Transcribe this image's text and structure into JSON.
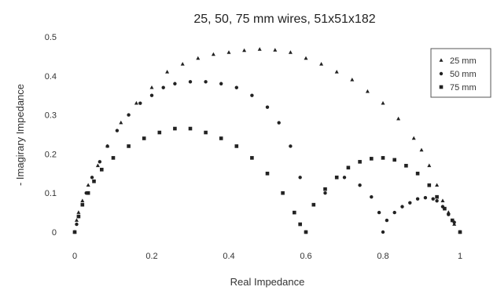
{
  "chart_data": {
    "type": "scatter",
    "title": "25, 50, 75 mm wires, 51x51x182",
    "xlabel": "Real Impedance",
    "ylabel": "- Imagirary Impedance",
    "xlim": [
      0,
      1
    ],
    "ylim": [
      0,
      0.5
    ],
    "x_ticks": [
      "0",
      "0.2",
      "0.4",
      "0.6",
      "0.8",
      "1"
    ],
    "y_ticks": [
      "0",
      "0.1",
      "0.2",
      "0.3",
      "0.4",
      "0.5"
    ],
    "grid": false,
    "legend_position": "top-right",
    "series": [
      {
        "name": "25 mm",
        "marker": "triangle",
        "x": [
          0.0,
          0.005,
          0.01,
          0.02,
          0.035,
          0.06,
          0.085,
          0.12,
          0.16,
          0.2,
          0.24,
          0.28,
          0.32,
          0.36,
          0.4,
          0.44,
          0.48,
          0.52,
          0.56,
          0.6,
          0.64,
          0.68,
          0.72,
          0.76,
          0.8,
          0.84,
          0.88,
          0.9,
          0.92,
          0.94,
          0.955,
          0.97,
          0.985,
          1.0
        ],
        "y": [
          0.0,
          0.03,
          0.05,
          0.08,
          0.12,
          0.17,
          0.22,
          0.28,
          0.33,
          0.37,
          0.41,
          0.43,
          0.445,
          0.455,
          0.46,
          0.465,
          0.468,
          0.466,
          0.46,
          0.445,
          0.43,
          0.41,
          0.39,
          0.36,
          0.33,
          0.29,
          0.24,
          0.21,
          0.17,
          0.12,
          0.08,
          0.05,
          0.02,
          0.0
        ]
      },
      {
        "name": "50 mm",
        "marker": "circle",
        "x": [
          0.0,
          0.005,
          0.01,
          0.02,
          0.03,
          0.045,
          0.065,
          0.085,
          0.11,
          0.14,
          0.17,
          0.2,
          0.23,
          0.26,
          0.3,
          0.34,
          0.38,
          0.42,
          0.46,
          0.5,
          0.53,
          0.56,
          0.585,
          0.6,
          0.65,
          0.7,
          0.74,
          0.77,
          0.79,
          0.8,
          0.81,
          0.83,
          0.85,
          0.87,
          0.89,
          0.91,
          0.93,
          0.94,
          0.955,
          0.97,
          0.985,
          1.0
        ],
        "y": [
          0.0,
          0.02,
          0.04,
          0.07,
          0.1,
          0.14,
          0.18,
          0.22,
          0.26,
          0.3,
          0.33,
          0.35,
          0.37,
          0.38,
          0.385,
          0.385,
          0.38,
          0.37,
          0.35,
          0.32,
          0.28,
          0.22,
          0.14,
          0.0,
          0.1,
          0.14,
          0.12,
          0.09,
          0.05,
          0.0,
          0.03,
          0.05,
          0.065,
          0.075,
          0.085,
          0.088,
          0.085,
          0.08,
          0.065,
          0.045,
          0.025,
          0.0
        ]
      },
      {
        "name": "75 mm",
        "marker": "square",
        "x": [
          0.0,
          0.01,
          0.02,
          0.035,
          0.05,
          0.07,
          0.1,
          0.14,
          0.18,
          0.22,
          0.26,
          0.3,
          0.34,
          0.38,
          0.42,
          0.46,
          0.5,
          0.54,
          0.57,
          0.585,
          0.6,
          0.62,
          0.65,
          0.68,
          0.71,
          0.74,
          0.77,
          0.8,
          0.83,
          0.86,
          0.89,
          0.92,
          0.94,
          0.96,
          0.98,
          1.0
        ],
        "y": [
          0.0,
          0.04,
          0.07,
          0.1,
          0.13,
          0.16,
          0.19,
          0.22,
          0.24,
          0.255,
          0.265,
          0.265,
          0.255,
          0.24,
          0.22,
          0.19,
          0.15,
          0.1,
          0.05,
          0.02,
          0.0,
          0.07,
          0.11,
          0.14,
          0.165,
          0.18,
          0.188,
          0.19,
          0.185,
          0.17,
          0.15,
          0.12,
          0.09,
          0.06,
          0.03,
          0.0
        ]
      }
    ]
  }
}
